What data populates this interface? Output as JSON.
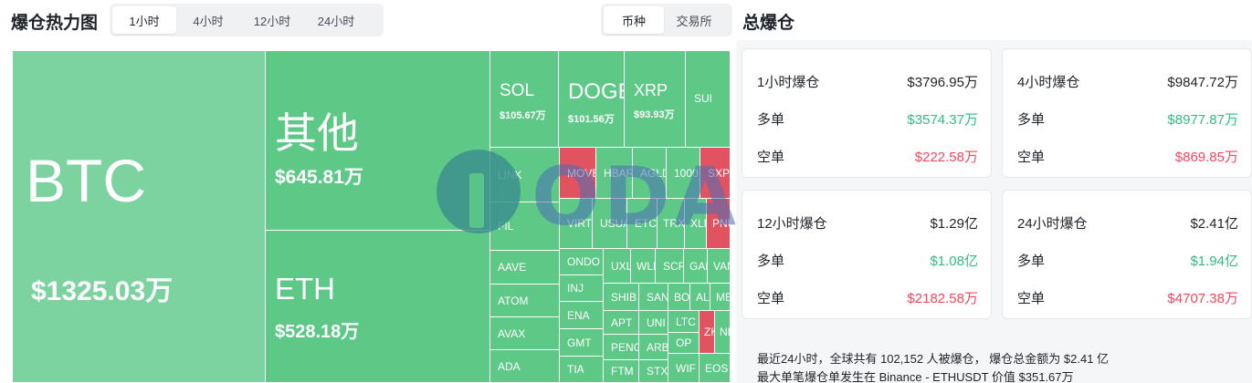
{
  "heatmap": {
    "title": "爆仓热力图",
    "time_options": [
      "1小时",
      "4小时",
      "12小时",
      "24小时"
    ],
    "type_options": [
      "币种",
      "交易所"
    ],
    "tiles": {
      "btc": {
        "name": "BTC",
        "value": "$1325.03万"
      },
      "other": {
        "name": "其他",
        "value": "$645.81万"
      },
      "eth": {
        "name": "ETH",
        "value": "$528.18万"
      },
      "sol": {
        "name": "SOL",
        "value": "$105.67万"
      },
      "doge": {
        "name": "DOGE",
        "value": "$101.56万"
      },
      "xrp": {
        "name": "XRP",
        "value": "$93.93万"
      },
      "sui": {
        "name": "SUI"
      },
      "link": {
        "name": "LINK"
      },
      "fil": {
        "name": "FIL"
      },
      "move": {
        "name": "MOVE"
      },
      "hbar": {
        "name": "HBAR"
      },
      "agld": {
        "name": "AGLD"
      },
      "t1000": {
        "name": "1000"
      },
      "sxp": {
        "name": "SXP"
      },
      "virt": {
        "name": "VIRT"
      },
      "usua": {
        "name": "USUAL"
      },
      "etc": {
        "name": "ETC"
      },
      "trx": {
        "name": "TRX"
      },
      "xl": {
        "name": "XLM"
      },
      "pn": {
        "name": "PNUT"
      },
      "aave": {
        "name": "AAVE"
      },
      "atom": {
        "name": "ATOM"
      },
      "avax": {
        "name": "AVAX"
      },
      "ada": {
        "name": "ADA"
      },
      "ondo": {
        "name": "ONDO"
      },
      "inj": {
        "name": "INJ"
      },
      "ena": {
        "name": "ENA"
      },
      "gmt": {
        "name": "GMT"
      },
      "tia": {
        "name": "TIA"
      },
      "uxl": {
        "name": "UXLINK"
      },
      "wl": {
        "name": "WLD"
      },
      "scr": {
        "name": "SCR"
      },
      "ga": {
        "name": "GALA"
      },
      "va": {
        "name": "VANA"
      },
      "shib": {
        "name": "SHIB"
      },
      "sand": {
        "name": "SAND"
      },
      "bo": {
        "name": "BOME"
      },
      "al": {
        "name": "ALGO"
      },
      "me": {
        "name": "ME"
      },
      "apt": {
        "name": "APT"
      },
      "uni": {
        "name": "UNI"
      },
      "ltc": {
        "name": "LTC"
      },
      "z": {
        "name": "ZK"
      },
      "n": {
        "name": "NEAR"
      },
      "pepe": {
        "name": "PENGU"
      },
      "arb": {
        "name": "ARB"
      },
      "op": {
        "name": "OP"
      },
      "ftm": {
        "name": "FTM"
      },
      "stx": {
        "name": "STX"
      },
      "wif": {
        "name": "WIF"
      },
      "eos": {
        "name": "EOS"
      }
    }
  },
  "watermark": {
    "text": "ODAILY"
  },
  "summary": {
    "title": "总爆仓",
    "long_label": "多单",
    "short_label": "空单",
    "cards": [
      {
        "period": "1小时爆仓",
        "total": "$3796.95万",
        "long": "$3574.37万",
        "short": "$222.58万"
      },
      {
        "period": "4小时爆仓",
        "total": "$9847.72万",
        "long": "$8977.87万",
        "short": "$869.85万"
      },
      {
        "period": "12小时爆仓",
        "total": "$1.29亿",
        "long": "$1.08亿",
        "short": "$2182.58万"
      },
      {
        "period": "24小时爆仓",
        "total": "$2.41亿",
        "long": "$1.94亿",
        "short": "$4707.38万"
      }
    ],
    "footer_line1": "最近24小时，全球共有 102,152 人被爆仓， 爆仓总金额为 $2.41 亿",
    "footer_line2": "最大单笔爆仓单发生在 Binance - ETHUSDT 价值 $351.67万"
  },
  "colors": {
    "long_green": "#2ebd85",
    "short_red": "#f6465d",
    "tile_green": "#5ec887",
    "tile_red": "#e15361"
  }
}
